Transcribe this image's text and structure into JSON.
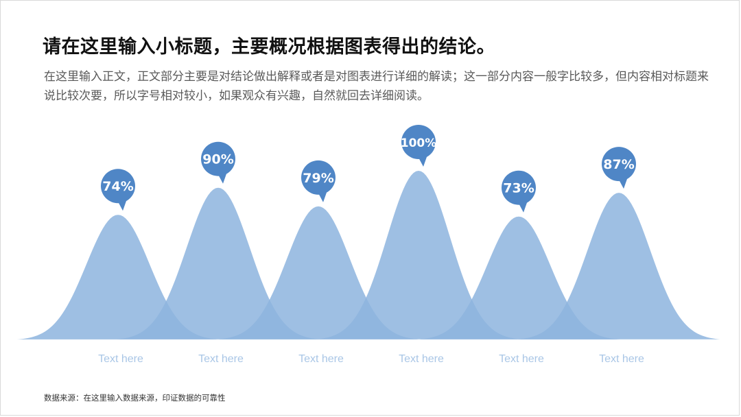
{
  "title": "请在这里输入小标题，主要概况根据图表得出的结论。",
  "body_text": "在这里输入正文，正文部分主要是对结论做出解释或者是对图表进行详细的解读；这一部分内容一般字比较多，但内容相对标题来说比较次要，所以字号相对较小，如果观众有兴趣，自然就回去详细阅读。",
  "source": "数据来源：在这里输入数据来源，印证数据的可靠性",
  "colors": {
    "peak": "#8db4de",
    "bubble": "#4f86c6",
    "overlap": "#5b93d0",
    "label": "#a9c6e6"
  },
  "chart_data": {
    "type": "area",
    "categories": [
      "Text here",
      "Text here",
      "Text here",
      "Text here",
      "Text here",
      "Text here"
    ],
    "values": [
      74,
      90,
      79,
      100,
      73,
      87
    ],
    "value_labels": [
      "74%",
      "90%",
      "79%",
      "100%",
      "73%",
      "87%"
    ],
    "ylim": [
      0,
      100
    ],
    "grid": false,
    "legend": "none"
  }
}
